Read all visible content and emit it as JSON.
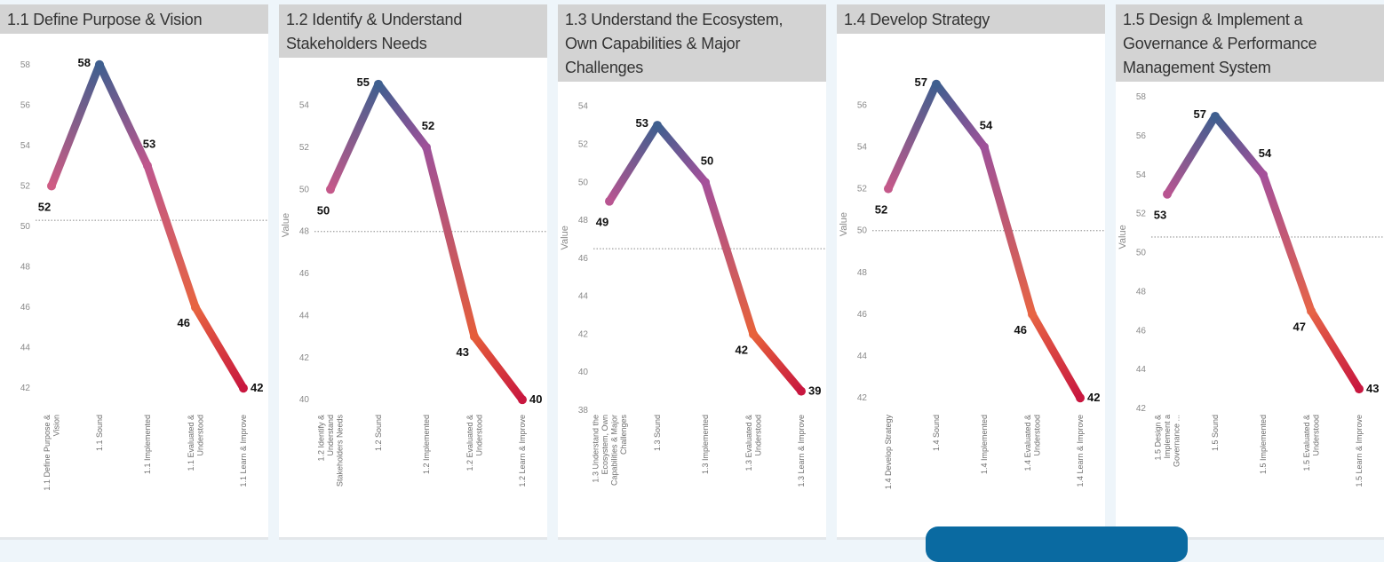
{
  "chart_data": [
    {
      "type": "line",
      "title": "1.1 Define Purpose & Vision",
      "ylabel": "",
      "categories": [
        "1.1 Define Purpose &\nVision",
        "1.1 Sound",
        "1.1 Implemented",
        "1.1 Evaluated &\nUnderstood",
        "1.1 Learn & Improve"
      ],
      "values": [
        52,
        58,
        53,
        46,
        42
      ],
      "value_labels": [
        "52",
        "58",
        "53",
        "46",
        "42"
      ],
      "reference_line": 50.3,
      "ylim": [
        41,
        59
      ],
      "yticks": [
        42,
        44,
        46,
        48,
        50,
        52,
        54,
        56,
        58
      ],
      "grid": false
    },
    {
      "type": "line",
      "title": "1.2 Identify & Understand\nStakeholders Needs",
      "ylabel": "Value",
      "categories": [
        "1.2 Identify &\nUnderstand\nStakeholders Needs",
        "1.2 Sound",
        "1.2 Implemented",
        "1.2 Evaluated &\nUnderstood",
        "1.2 Learn & Improve"
      ],
      "values": [
        50,
        55,
        52,
        43,
        40
      ],
      "value_labels": [
        "50",
        "55",
        "52",
        "43",
        "40"
      ],
      "reference_line": 48,
      "ylim": [
        39.5,
        55.5
      ],
      "yticks": [
        40,
        42,
        44,
        46,
        48,
        50,
        52,
        54
      ],
      "grid": false
    },
    {
      "type": "line",
      "title": "1.3 Understand the Ecosystem,\nOwn Capabilities & Major\nChallenges",
      "ylabel": "Value",
      "categories": [
        "1.3 Understand the\nEcosystem, Own\nCapabilities & Major\nChallenges",
        "1.3 Sound",
        "1.3 Implemented",
        "1.3 Evaluated &\nUnderstood",
        "1.3 Learn & Improve"
      ],
      "values": [
        49,
        53,
        50,
        42,
        39
      ],
      "value_labels": [
        "49",
        "53",
        "50",
        "42",
        "39"
      ],
      "reference_line": 46.5,
      "ylim": [
        38,
        54.5
      ],
      "yticks": [
        38,
        40,
        42,
        44,
        46,
        48,
        50,
        52,
        54
      ],
      "grid": false
    },
    {
      "type": "line",
      "title": "1.4 Develop Strategy",
      "ylabel": "Value",
      "categories": [
        "1.4 Develop Strategy",
        "1.4 Sound",
        "1.4 Implemented",
        "1.4 Evaluated &\nUnderstood",
        "1.4 Learn & Improve"
      ],
      "values": [
        52,
        57,
        54,
        46,
        42
      ],
      "value_labels": [
        "52",
        "57",
        "54",
        "46",
        "42"
      ],
      "reference_line": 50,
      "ylim": [
        41.5,
        57.5
      ],
      "yticks": [
        42,
        44,
        46,
        48,
        50,
        52,
        54,
        56
      ],
      "grid": false
    },
    {
      "type": "line",
      "title": "1.5 Design & Implement a\nGovernance & Performance\nManagement System",
      "ylabel": "Value",
      "categories": [
        "1.5 Design &\nImplement a\nGovernance ...",
        "1.5 Sound",
        "1.5 Implemented",
        "1.5 Evaluated &\nUnderstood",
        "1.5 Learn & Improve"
      ],
      "values": [
        53,
        57,
        54,
        47,
        43
      ],
      "value_labels": [
        "53",
        "57",
        "54",
        "47",
        "43"
      ],
      "reference_line": 50.8,
      "ylim": [
        42,
        58
      ],
      "yticks": [
        42,
        44,
        46,
        48,
        50,
        52,
        54,
        56,
        58
      ],
      "grid": false
    }
  ],
  "colors": {
    "high": "#3f5f8f",
    "mid": "#a8509a",
    "upper_low": "#e0627a",
    "low": "#e8643a",
    "lowest": "#c8173f"
  }
}
